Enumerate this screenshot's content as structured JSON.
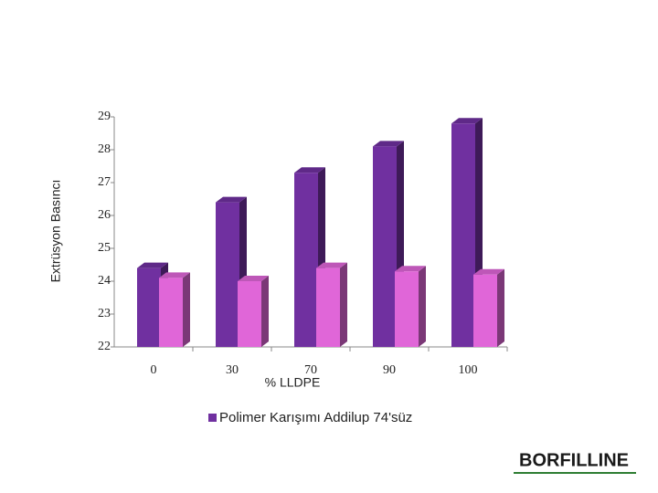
{
  "chart_data": {
    "type": "bar3d",
    "y_label": "Extrüsyon Basıncı",
    "x_label": "% LLDPE",
    "categories": [
      "0",
      "30",
      "70",
      "90",
      "100"
    ],
    "series": [
      {
        "name": "Polimer Karışımı Addilup 74'süz",
        "color": "#7030a0",
        "values": [
          24.4,
          26.4,
          27.3,
          28.1,
          28.8
        ]
      },
      {
        "color": "#e066d8",
        "values": [
          24.1,
          24.0,
          24.4,
          24.3,
          24.2
        ]
      }
    ],
    "ylim": [
      22,
      29
    ],
    "yticks": [
      22,
      23,
      24,
      25,
      26,
      27,
      28,
      29
    ],
    "logo": "BORFILLINE"
  }
}
